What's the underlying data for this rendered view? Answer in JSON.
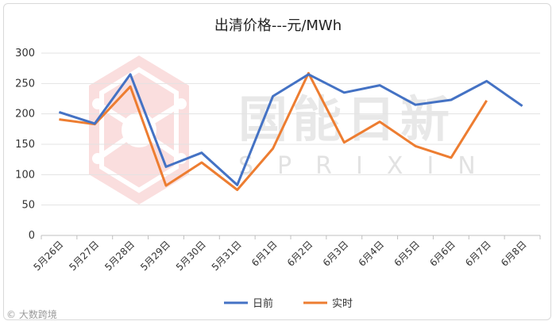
{
  "chart_data": {
    "type": "line",
    "title": "出清价格---元/MWh",
    "categories": [
      "5月26日",
      "5月27日",
      "5月28日",
      "5月29日",
      "5月30日",
      "5月31日",
      "6月1日",
      "6月2日",
      "6月3日",
      "6月4日",
      "6月5日",
      "6月6日",
      "6月7日",
      "6月8日"
    ],
    "series": [
      {
        "name": "日前",
        "color": "#4472c4",
        "values": [
          203,
          184,
          265,
          113,
          136,
          83,
          229,
          265,
          235,
          247,
          215,
          223,
          254,
          213
        ]
      },
      {
        "name": "实时",
        "color": "#ed7d31",
        "values": [
          191,
          183,
          245,
          82,
          120,
          75,
          143,
          267,
          153,
          187,
          147,
          128,
          222,
          null
        ]
      }
    ],
    "y_ticks": [
      0,
      50,
      100,
      150,
      200,
      250,
      300
    ],
    "ylim": [
      0,
      300
    ],
    "grid": true,
    "legend": "bottom"
  },
  "watermark": {
    "brand": "国能日新",
    "sub": "SPRIXIN"
  },
  "credit": "© 大数跨境"
}
